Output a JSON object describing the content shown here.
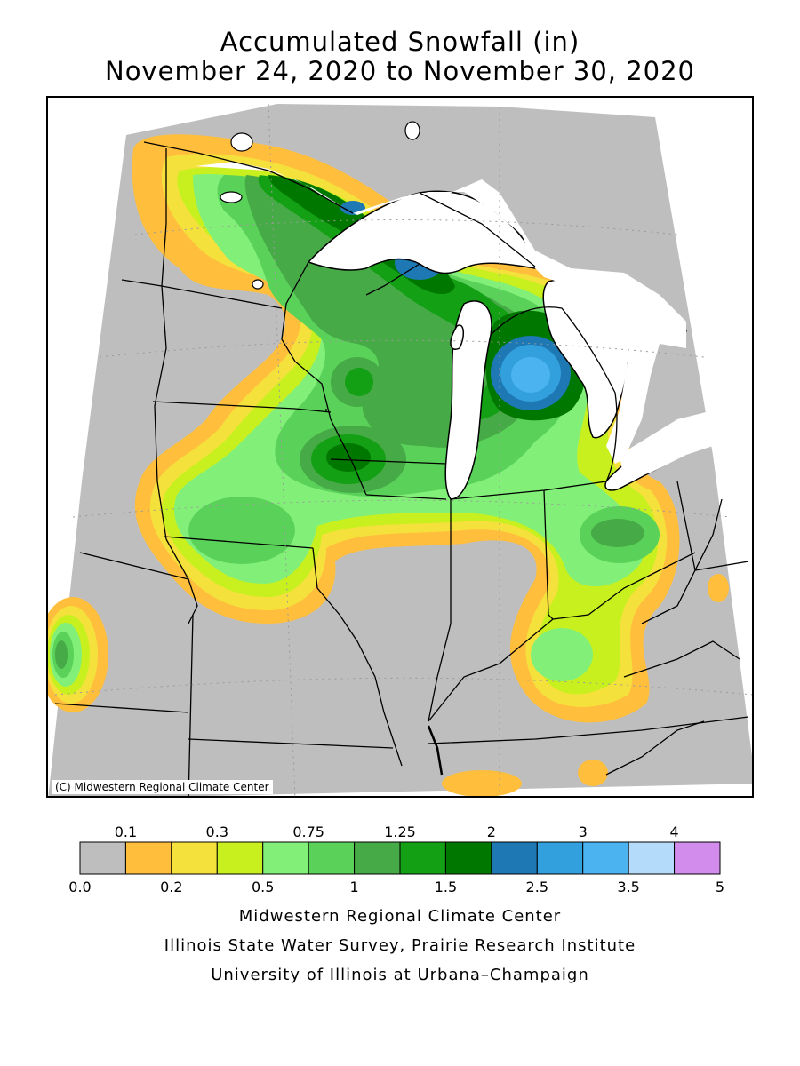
{
  "title": {
    "line1": "Accumulated Snowfall (in)",
    "line2": "November 24, 2020 to November 30, 2020"
  },
  "map": {
    "copyright": "(C) Midwestern Regional Climate Center",
    "background_color": "#bebebe"
  },
  "legend": {
    "bins": [
      {
        "from": "0.0",
        "to": "0.1",
        "color": "#bebebe"
      },
      {
        "from": "0.1",
        "to": "0.2",
        "color": "#ffbe3c"
      },
      {
        "from": "0.2",
        "to": "0.3",
        "color": "#f5e13c"
      },
      {
        "from": "0.3",
        "to": "0.5",
        "color": "#c8f01e"
      },
      {
        "from": "0.5",
        "to": "0.75",
        "color": "#82f078"
      },
      {
        "from": "0.75",
        "to": "1",
        "color": "#5ad25a"
      },
      {
        "from": "1",
        "to": "1.25",
        "color": "#46aa46"
      },
      {
        "from": "1.25",
        "to": "1.5",
        "color": "#14a014"
      },
      {
        "from": "1.5",
        "to": "2",
        "color": "#007800"
      },
      {
        "from": "2",
        "to": "2.5",
        "color": "#1e78b4"
      },
      {
        "from": "2.5",
        "to": "3",
        "color": "#32a0dc"
      },
      {
        "from": "3",
        "to": "3.5",
        "color": "#4bb4f0"
      },
      {
        "from": "3.5",
        "to": "4",
        "color": "#b4dcfa"
      },
      {
        "from": "4",
        "to": "5",
        "color": "#d28ceb"
      }
    ],
    "top_labels": [
      "0.1",
      "0.3",
      "0.75",
      "1.25",
      "2",
      "3",
      "4"
    ],
    "bottom_labels": [
      "0.0",
      "0.2",
      "0.5",
      "1",
      "1.5",
      "2.5",
      "3.5",
      "5"
    ]
  },
  "credits": {
    "line1": "Midwestern Regional Climate Center",
    "line2": "Illinois State Water Survey, Prairie Research Institute",
    "line3": "University of Illinois at Urbana–Champaign"
  }
}
